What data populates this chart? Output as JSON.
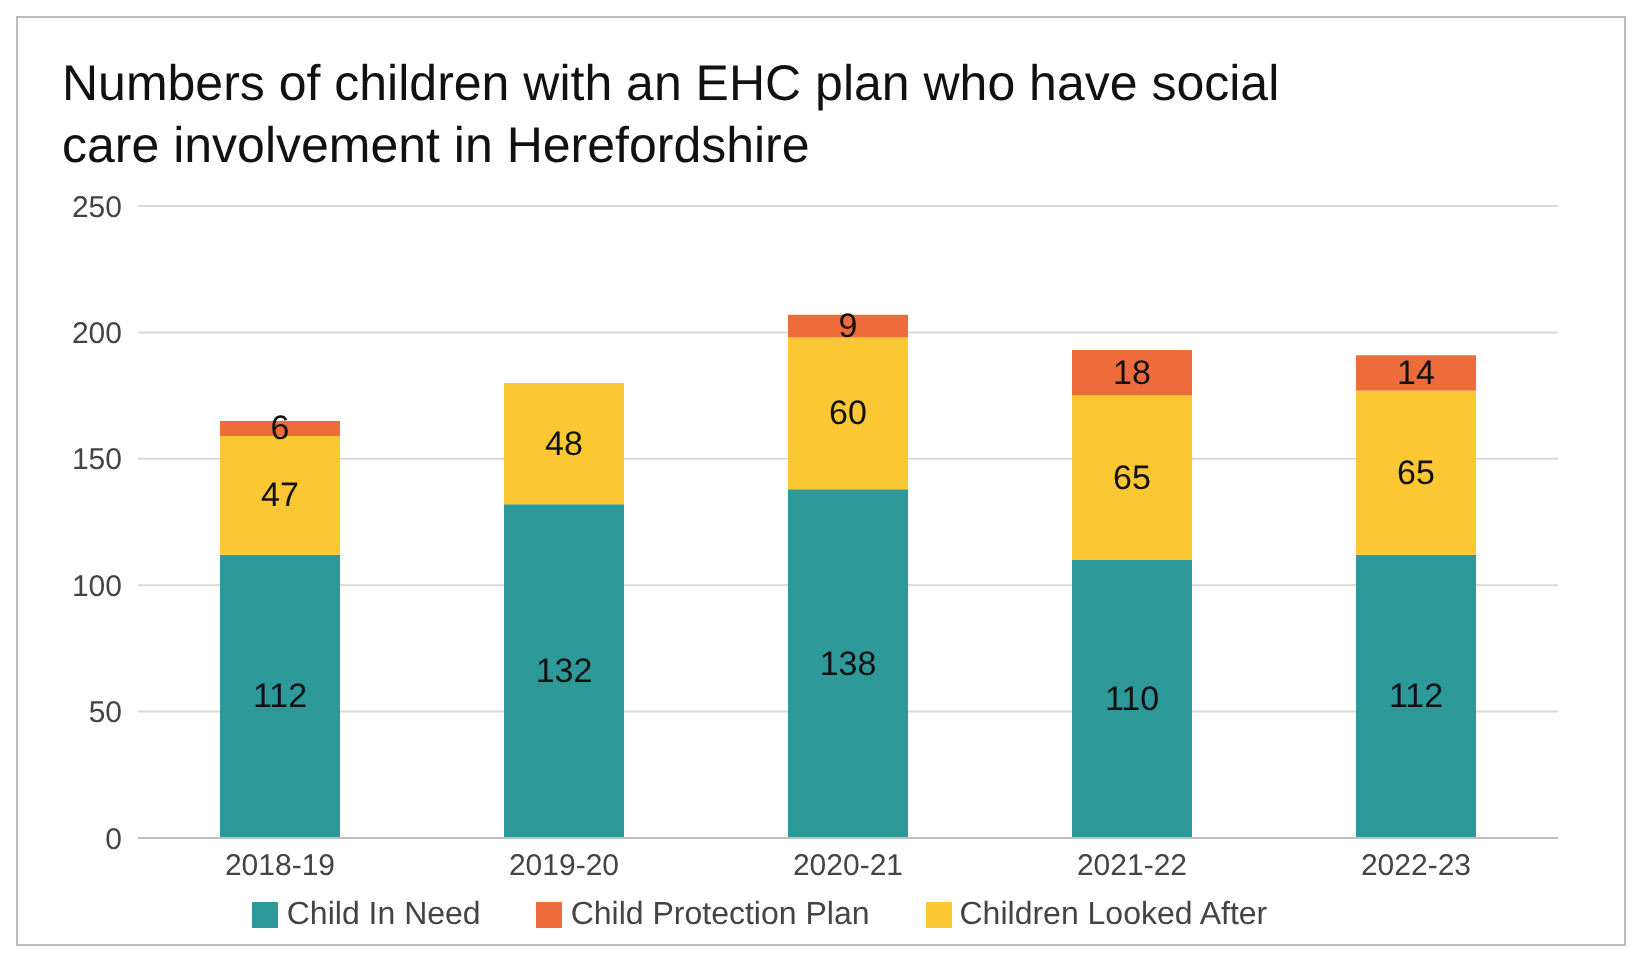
{
  "chart_data": {
    "type": "bar",
    "title": "Numbers of children with an EHC plan who have social care involvement  in Herefordshire",
    "categories": [
      "2018-19",
      "2019-20",
      "2020-21",
      "2021-22",
      "2022-23"
    ],
    "series": [
      {
        "name": "Child In Need",
        "color": "#2e9999",
        "values": [
          112,
          132,
          138,
          110,
          112
        ]
      },
      {
        "name": "Children Looked After",
        "color": "#fbc733",
        "values": [
          47,
          48,
          60,
          65,
          65
        ]
      },
      {
        "name": "Child Protection Plan",
        "color": "#ee6b3b",
        "values": [
          6,
          null,
          9,
          18,
          14
        ]
      }
    ],
    "stacked": true,
    "data_labels": true,
    "ylim": [
      0,
      250
    ],
    "yticks": [
      0,
      50,
      100,
      150,
      200,
      250
    ],
    "grid": "y",
    "legend": "bottom"
  }
}
